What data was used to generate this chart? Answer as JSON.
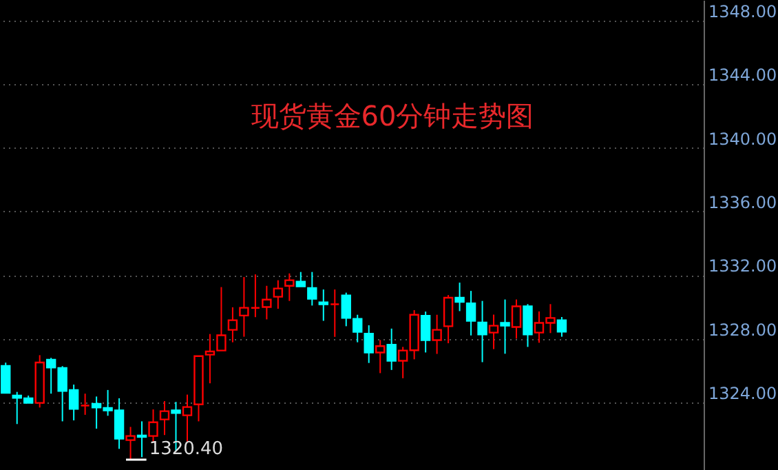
{
  "chart_data": {
    "type": "candlestick",
    "title": "现货黄金60分钟走势图",
    "categories": [
      null,
      null,
      null,
      null,
      null,
      null,
      null,
      null,
      null,
      null,
      null,
      null,
      null,
      null,
      null,
      null,
      null,
      null,
      null,
      null,
      null,
      null,
      null,
      null,
      null,
      null,
      null,
      null,
      null,
      null,
      null,
      null,
      null,
      null,
      null,
      null,
      null,
      null,
      null,
      null,
      null,
      null,
      null,
      null,
      null,
      null,
      null,
      null,
      null,
      null,
      null,
      null,
      null,
      null,
      null,
      null,
      null,
      null,
      null,
      null,
      null,
      null
    ],
    "ohlc": [
      [
        1326.3,
        1326.5,
        1324.6,
        1324.6
      ],
      [
        1324.43,
        1324.66,
        1322.64,
        1324.29
      ],
      [
        1324.26,
        1324.43,
        1323.97,
        1323.97
      ],
      [
        1323.97,
        1326.97,
        1323.68,
        1326.51
      ],
      [
        1326.68,
        1326.8,
        1324.55,
        1326.19
      ],
      [
        1326.16,
        1326.28,
        1322.81,
        1324.72
      ],
      [
        1324.78,
        1325.12,
        1322.87,
        1323.59
      ],
      [
        1323.8,
        1324.55,
        1323.22,
        1323.8
      ],
      [
        1323.91,
        1324.37,
        1322.35,
        1323.68
      ],
      [
        1323.65,
        1324.78,
        1323.16,
        1323.5
      ],
      [
        1323.5,
        1324.26,
        1321.08,
        1321.72
      ],
      [
        1321.63,
        1322.46,
        1320.4,
        1321.89
      ],
      [
        1321.92,
        1322.81,
        1320.56,
        1321.83
      ],
      [
        1321.89,
        1323.56,
        1321.54,
        1322.75
      ],
      [
        1322.93,
        1324.08,
        1321.95,
        1323.45
      ],
      [
        1323.5,
        1324.03,
        1320.96,
        1323.33
      ],
      [
        1323.19,
        1324.49,
        1321.54,
        1323.71
      ],
      [
        1323.88,
        1326.91,
        1322.81,
        1326.91
      ],
      [
        1327.0,
        1328.3,
        1325.2,
        1327.2
      ],
      [
        1327.26,
        1331.25,
        1327.26,
        1328.22
      ],
      [
        1328.56,
        1329.98,
        1327.78,
        1329.17
      ],
      [
        1329.46,
        1331.88,
        1328.13,
        1329.95
      ],
      [
        1329.94,
        1332.05,
        1329.36,
        1329.94
      ],
      [
        1330.0,
        1331.33,
        1329.22,
        1330.46
      ],
      [
        1330.64,
        1331.68,
        1329.89,
        1331.16
      ],
      [
        1331.33,
        1332.11,
        1330.38,
        1331.68
      ],
      [
        1331.59,
        1332.2,
        1331.3,
        1331.3
      ],
      [
        1331.19,
        1332.2,
        1330.09,
        1330.52
      ],
      [
        1330.29,
        1331.1,
        1329.13,
        1330.17
      ],
      [
        1330.17,
        1331.1,
        1328.12,
        1330.17
      ],
      [
        1330.72,
        1330.9,
        1328.79,
        1329.31
      ],
      [
        1329.25,
        1329.51,
        1327.78,
        1328.44
      ],
      [
        1328.32,
        1328.85,
        1326.48,
        1327.14
      ],
      [
        1327.14,
        1327.92,
        1325.84,
        1327.54
      ],
      [
        1327.63,
        1328.64,
        1326.04,
        1326.62
      ],
      [
        1326.62,
        1327.49,
        1325.52,
        1327.26
      ],
      [
        1327.28,
        1329.8,
        1326.71,
        1329.51
      ],
      [
        1329.45,
        1329.71,
        1327.14,
        1327.92
      ],
      [
        1327.92,
        1329.51,
        1327.05,
        1328.56
      ],
      [
        1328.79,
        1330.75,
        1327.72,
        1330.58
      ],
      [
        1330.58,
        1331.53,
        1329.74,
        1330.32
      ],
      [
        1330.23,
        1331.01,
        1328.21,
        1329.13
      ],
      [
        1329.02,
        1330.38,
        1326.53,
        1328.27
      ],
      [
        1328.39,
        1329.52,
        1327.35,
        1328.82
      ],
      [
        1329.0,
        1330.47,
        1327.06,
        1328.82
      ],
      [
        1328.74,
        1330.47,
        1328.01,
        1330.04
      ],
      [
        1330.04,
        1330.18,
        1327.49,
        1328.27
      ],
      [
        1328.39,
        1329.72,
        1327.75,
        1329.0
      ],
      [
        1329.0,
        1330.18,
        1328.36,
        1329.31
      ],
      [
        1329.17,
        1329.37,
        1328.13,
        1328.45
      ],
      null,
      null,
      null,
      null,
      null,
      null,
      null,
      null,
      null,
      null,
      null,
      null
    ],
    "colors": [
      "#00ffff",
      "#00ffff",
      "#00ffff",
      "#ff0000",
      "#00ffff",
      "#00ffff",
      "#00ffff",
      "#ff0000",
      "#00ffff",
      "#00ffff",
      "#00ffff",
      "#ff0000",
      "#00ffff",
      "#ff0000",
      "#ff0000",
      "#00ffff",
      "#ff0000",
      "#ff0000",
      "#ff0000",
      "#ff0000",
      "#ff0000",
      "#ff0000",
      "#ff0000",
      "#ff0000",
      "#ff0000",
      "#ff0000",
      "#00ffff",
      "#00ffff",
      "#00ffff",
      "#ff0000",
      "#00ffff",
      "#00ffff",
      "#00ffff",
      "#ff0000",
      "#00ffff",
      "#ff0000",
      "#ff0000",
      "#00ffff",
      "#ff0000",
      "#ff0000",
      "#00ffff",
      "#00ffff",
      "#00ffff",
      "#ff0000",
      "#00ffff",
      "#ff0000",
      "#00ffff",
      "#ff0000",
      "#ff0000",
      "#00ffff",
      null,
      null,
      null,
      null,
      null,
      null,
      null,
      null,
      null,
      null,
      null,
      null
    ],
    "ylim": [
      1319.75,
      1349.3
    ],
    "yticks": [
      {
        "value": 1324,
        "label": "1324.00"
      },
      {
        "value": 1328,
        "label": "1328.00"
      },
      {
        "value": 1332,
        "label": "1332.00"
      },
      {
        "value": 1336,
        "label": "1336.00"
      },
      {
        "value": 1340,
        "label": "1340.00"
      },
      {
        "value": 1344,
        "label": "1344.00"
      },
      {
        "value": 1348,
        "label": "1348.00"
      }
    ],
    "grid": "y",
    "annotations": [
      "1320.40"
    ]
  }
}
